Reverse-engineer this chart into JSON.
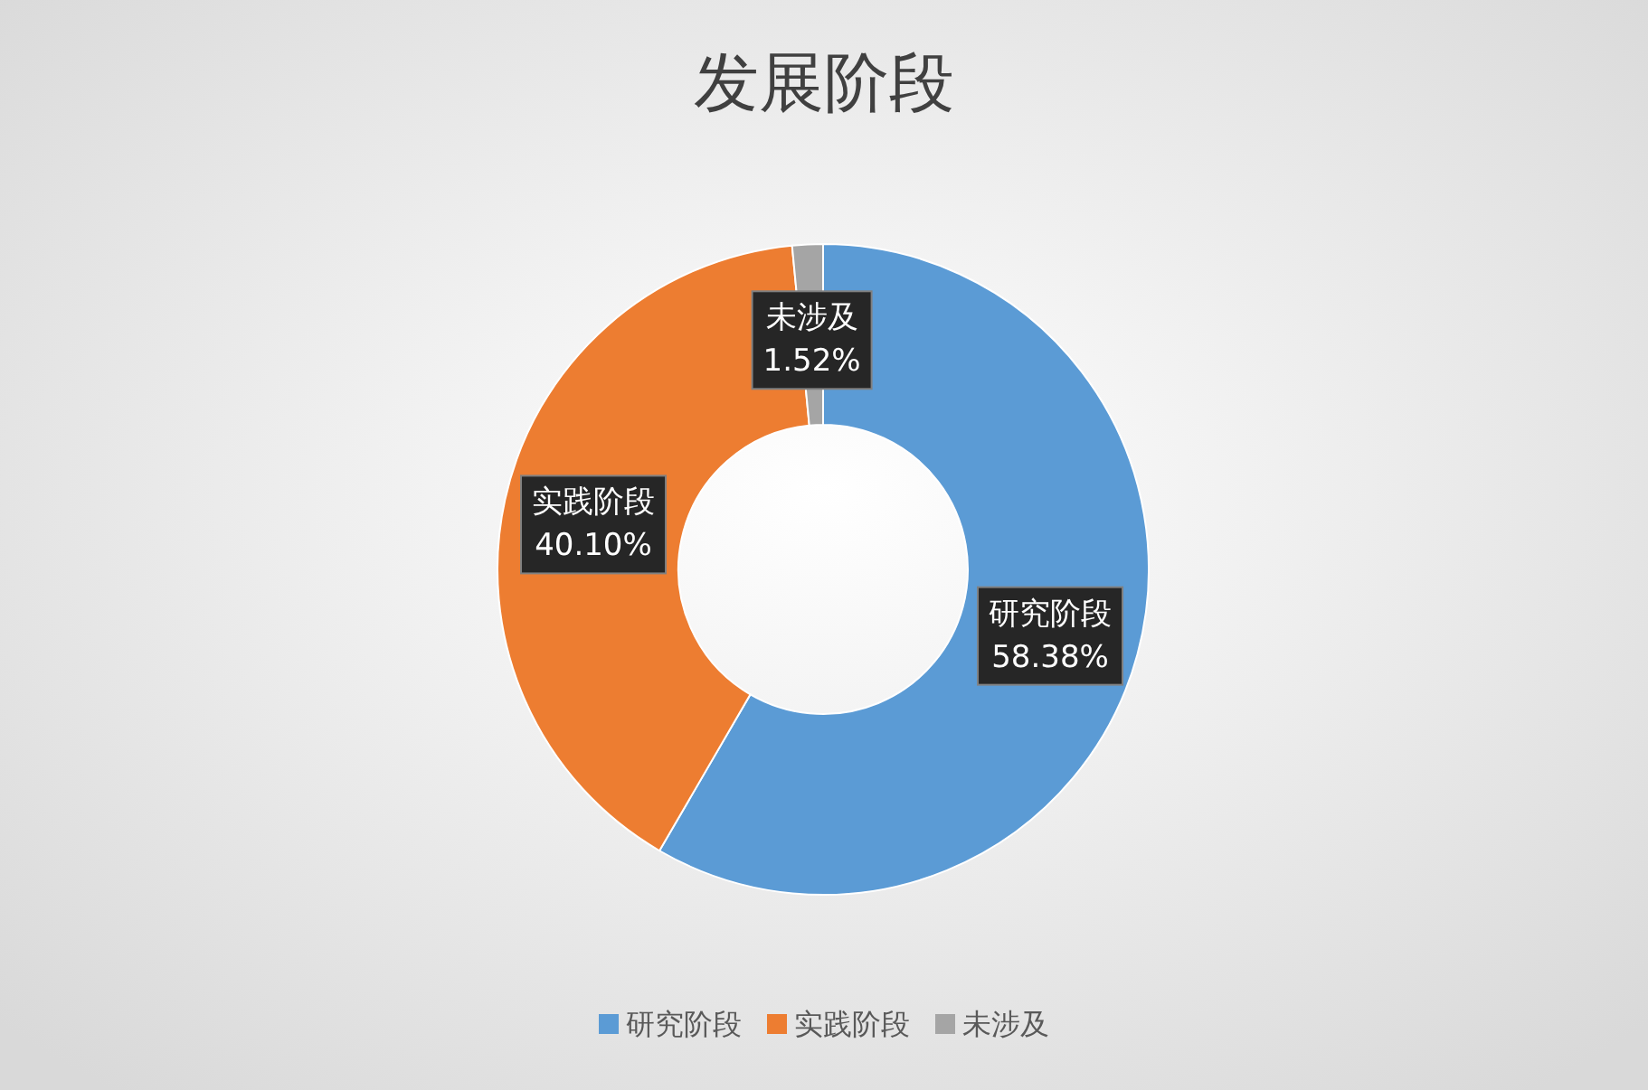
{
  "chart_data": {
    "type": "donut",
    "title": "发展阶段",
    "categories": [
      "研究阶段",
      "实践阶段",
      "未涉及"
    ],
    "values": [
      58.38,
      40.1,
      1.52
    ],
    "colors": [
      "#5b9bd5",
      "#ed7d31",
      "#a5a5a5"
    ],
    "value_labels": [
      "58.38%",
      "40.10%",
      "1.52%"
    ],
    "legend": "bottom"
  }
}
